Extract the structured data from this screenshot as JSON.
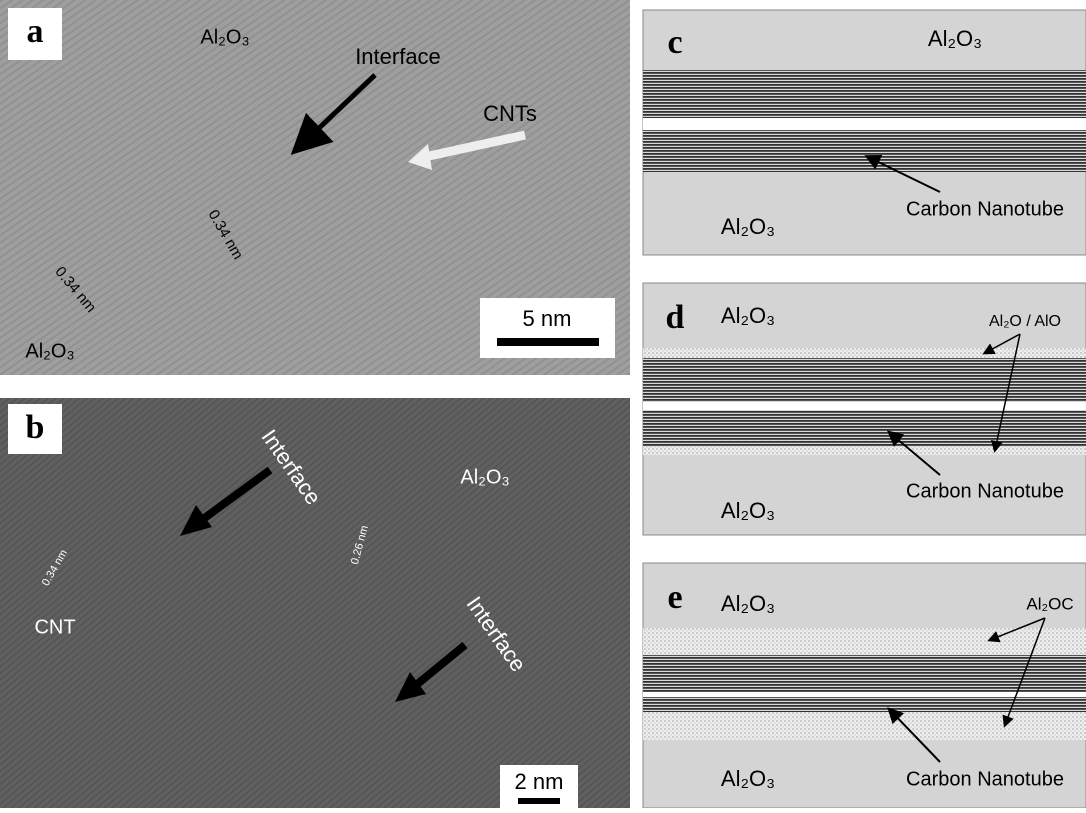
{
  "panels": [
    {
      "label": "a",
      "texts": [
        "Al₂O₃",
        "Interface",
        "CNTs",
        "0.34 nm",
        "0.34 nm",
        "Al₂O₃",
        "5 nm"
      ]
    },
    {
      "label": "b",
      "texts": [
        "Interface",
        "Al₂O₃",
        "0.34 nm",
        "0.26 nm",
        "CNT",
        "Interface",
        "2 nm"
      ]
    },
    {
      "label": "c",
      "texts": [
        "Al₂O₃",
        "Carbon Nanotube",
        "Al₂O₃"
      ]
    },
    {
      "label": "d",
      "texts": [
        "Al₂O₃",
        "Al₂O / AlO",
        "Carbon Nanotube",
        "Al₂O₃"
      ]
    },
    {
      "label": "e",
      "texts": [
        "Al₂O₃",
        "Al₂OC",
        "Carbon Nanotube",
        "Al₂O₃"
      ]
    }
  ]
}
